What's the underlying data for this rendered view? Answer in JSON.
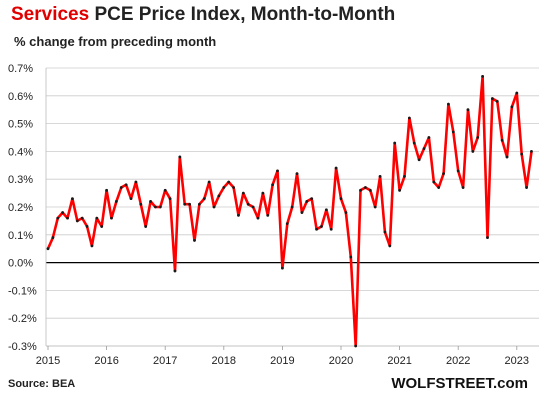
{
  "title": {
    "accent": "Services",
    "rest": " PCE Price Index, Month-to-Month"
  },
  "subtitle": "% change from preceding month",
  "source": "Source: BEA",
  "brand": "WOLFSTREET.com",
  "colors": {
    "line": "#ff0000",
    "marker": "#1a1a1a",
    "accent": "#e00000",
    "grid": "#cccccc"
  },
  "chart_data": {
    "type": "line",
    "title": "Services PCE Price Index, Month-to-Month",
    "ylabel": "% change from preceding month",
    "xlabel": "",
    "ylim": [
      -0.3,
      0.7
    ],
    "grid": true,
    "x_ticks": [
      "2015",
      "2016",
      "2017",
      "2018",
      "2019",
      "2020",
      "2021",
      "2022",
      "2023"
    ],
    "y_ticks": [
      "0.7%",
      "0.6%",
      "0.5%",
      "0.4%",
      "0.3%",
      "0.2%",
      "0.1%",
      "0.0%",
      "-0.1%",
      "-0.2%",
      "-0.3%"
    ],
    "x_start": "2015-01",
    "series": [
      {
        "values": [
          0.05,
          0.09,
          0.16,
          0.18,
          0.16,
          0.23,
          0.15,
          0.16,
          0.13,
          0.06,
          0.16,
          0.13,
          0.26,
          0.16,
          0.22,
          0.27,
          0.28,
          0.23,
          0.29,
          0.21,
          0.13,
          0.22,
          0.2,
          0.2,
          0.26,
          0.23,
          -0.03,
          0.38,
          0.21,
          0.21,
          0.08,
          0.21,
          0.23,
          0.29,
          0.2,
          0.24,
          0.27,
          0.29,
          0.27,
          0.17,
          0.25,
          0.21,
          0.2,
          0.16,
          0.25,
          0.17,
          0.28,
          0.33,
          -0.02,
          0.14,
          0.2,
          0.32,
          0.18,
          0.22,
          0.23,
          0.12,
          0.13,
          0.19,
          0.12,
          0.34,
          0.23,
          0.18,
          0.02,
          -0.3,
          0.26,
          0.27,
          0.26,
          0.2,
          0.31,
          0.11,
          0.06,
          0.43,
          0.26,
          0.31,
          0.52,
          0.43,
          0.37,
          0.41,
          0.45,
          0.29,
          0.27,
          0.32,
          0.57,
          0.47,
          0.33,
          0.27,
          0.55,
          0.4,
          0.45,
          0.67,
          0.09,
          0.59,
          0.58,
          0.44,
          0.38,
          0.56,
          0.61,
          0.39,
          0.27,
          0.4
        ]
      }
    ]
  }
}
